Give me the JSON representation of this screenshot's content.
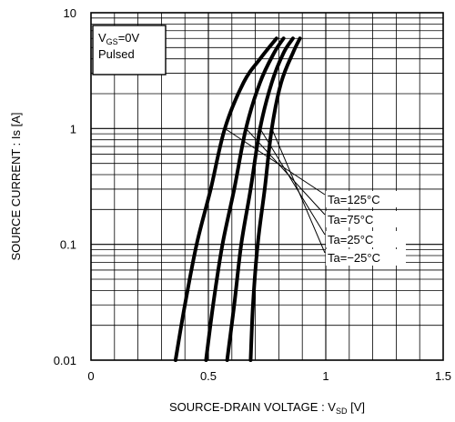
{
  "chart_data": {
    "type": "line",
    "title": "",
    "xlabel": "SOURCE-DRAIN VOLTAGE : V",
    "xlabel_sub": "SD",
    "xlabel_unit": " [V]",
    "ylabel": "SOURCE CURRENT : Is [A]",
    "xlim": [
      0,
      1.5
    ],
    "ylim": [
      0.01,
      10
    ],
    "y_scale": "log",
    "grid": true,
    "x_ticks": [
      0,
      0.5,
      1,
      1.5
    ],
    "x_tick_labels": [
      "0",
      "0.5",
      "1",
      "1.5"
    ],
    "y_ticks": [
      0.01,
      0.1,
      1,
      10
    ],
    "y_tick_labels": [
      "0.01",
      "0.1",
      "1",
      "10"
    ],
    "conditions": {
      "line1_prefix": "V",
      "line1_sub": "GS",
      "line1_suffix": "=0V",
      "line2": "Pulsed"
    },
    "series": [
      {
        "name": "Ta=125°C",
        "points": [
          [
            0.36,
            0.01
          ],
          [
            0.4,
            0.03
          ],
          [
            0.45,
            0.1
          ],
          [
            0.51,
            0.3
          ],
          [
            0.57,
            1.0
          ],
          [
            0.65,
            2.5
          ],
          [
            0.72,
            4.0
          ],
          [
            0.79,
            6.0
          ]
        ]
      },
      {
        "name": "Ta=75°C",
        "points": [
          [
            0.49,
            0.01
          ],
          [
            0.52,
            0.03
          ],
          [
            0.56,
            0.1
          ],
          [
            0.61,
            0.3
          ],
          [
            0.66,
            1.0
          ],
          [
            0.72,
            2.5
          ],
          [
            0.78,
            4.5
          ],
          [
            0.82,
            6.0
          ]
        ]
      },
      {
        "name": "Ta=25°C",
        "points": [
          [
            0.58,
            0.01
          ],
          [
            0.61,
            0.03
          ],
          [
            0.64,
            0.1
          ],
          [
            0.68,
            0.3
          ],
          [
            0.72,
            1.0
          ],
          [
            0.77,
            2.5
          ],
          [
            0.82,
            4.5
          ],
          [
            0.86,
            6.0
          ]
        ]
      },
      {
        "name": "Ta=-25°C",
        "points": [
          [
            0.68,
            0.01
          ],
          [
            0.69,
            0.03
          ],
          [
            0.71,
            0.1
          ],
          [
            0.74,
            0.3
          ],
          [
            0.77,
            1.0
          ],
          [
            0.81,
            2.5
          ],
          [
            0.86,
            4.5
          ],
          [
            0.89,
            6.0
          ]
        ]
      }
    ],
    "labels": [
      "Ta=125°C",
      "Ta=75°C",
      "Ta=25°C",
      "Ta=−25°C"
    ]
  }
}
